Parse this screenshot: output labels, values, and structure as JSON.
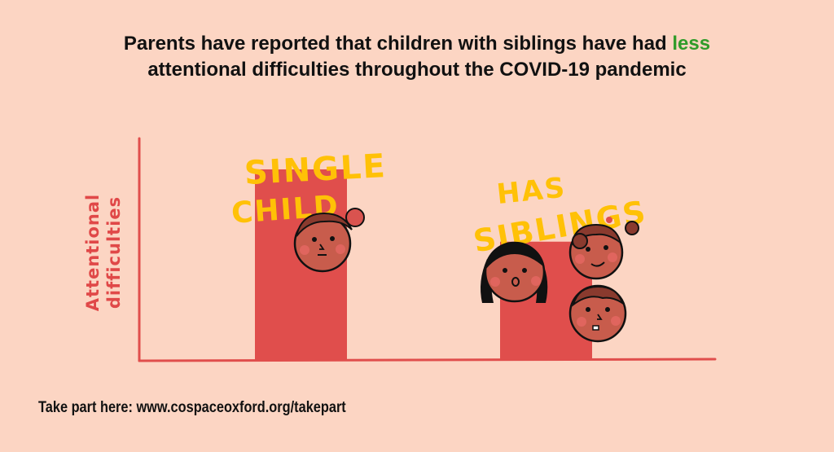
{
  "title": {
    "line1_prefix": "Parents have reported that children with siblings have had ",
    "line1_highlight": "less",
    "line2": "attentional difficulties throughout the COVID-19 pandemic",
    "highlight_color": "#2f9b29"
  },
  "footer": {
    "text": "Take part here: www.cospaceoxford.org/takepart"
  },
  "chart_data": {
    "type": "bar",
    "title": "Parents have reported that children with siblings have had less attentional difficulties throughout the COVID-19 pandemic",
    "ylabel": [
      "Attentional",
      "difficulties"
    ],
    "xlabel": "",
    "categories": [
      "Single child",
      "Has siblings"
    ],
    "bar_labels": [
      [
        "SINGLE",
        "CHILD"
      ],
      [
        "HAS",
        "SIBLINGS"
      ]
    ],
    "values": [
      0.87,
      0.54
    ],
    "ylim": [
      0,
      1
    ],
    "value_units": "relative level (no scale shown)",
    "bar_color": "#e04e4c",
    "axis_color": "#e04e4c",
    "label_color": "#ffc107"
  }
}
